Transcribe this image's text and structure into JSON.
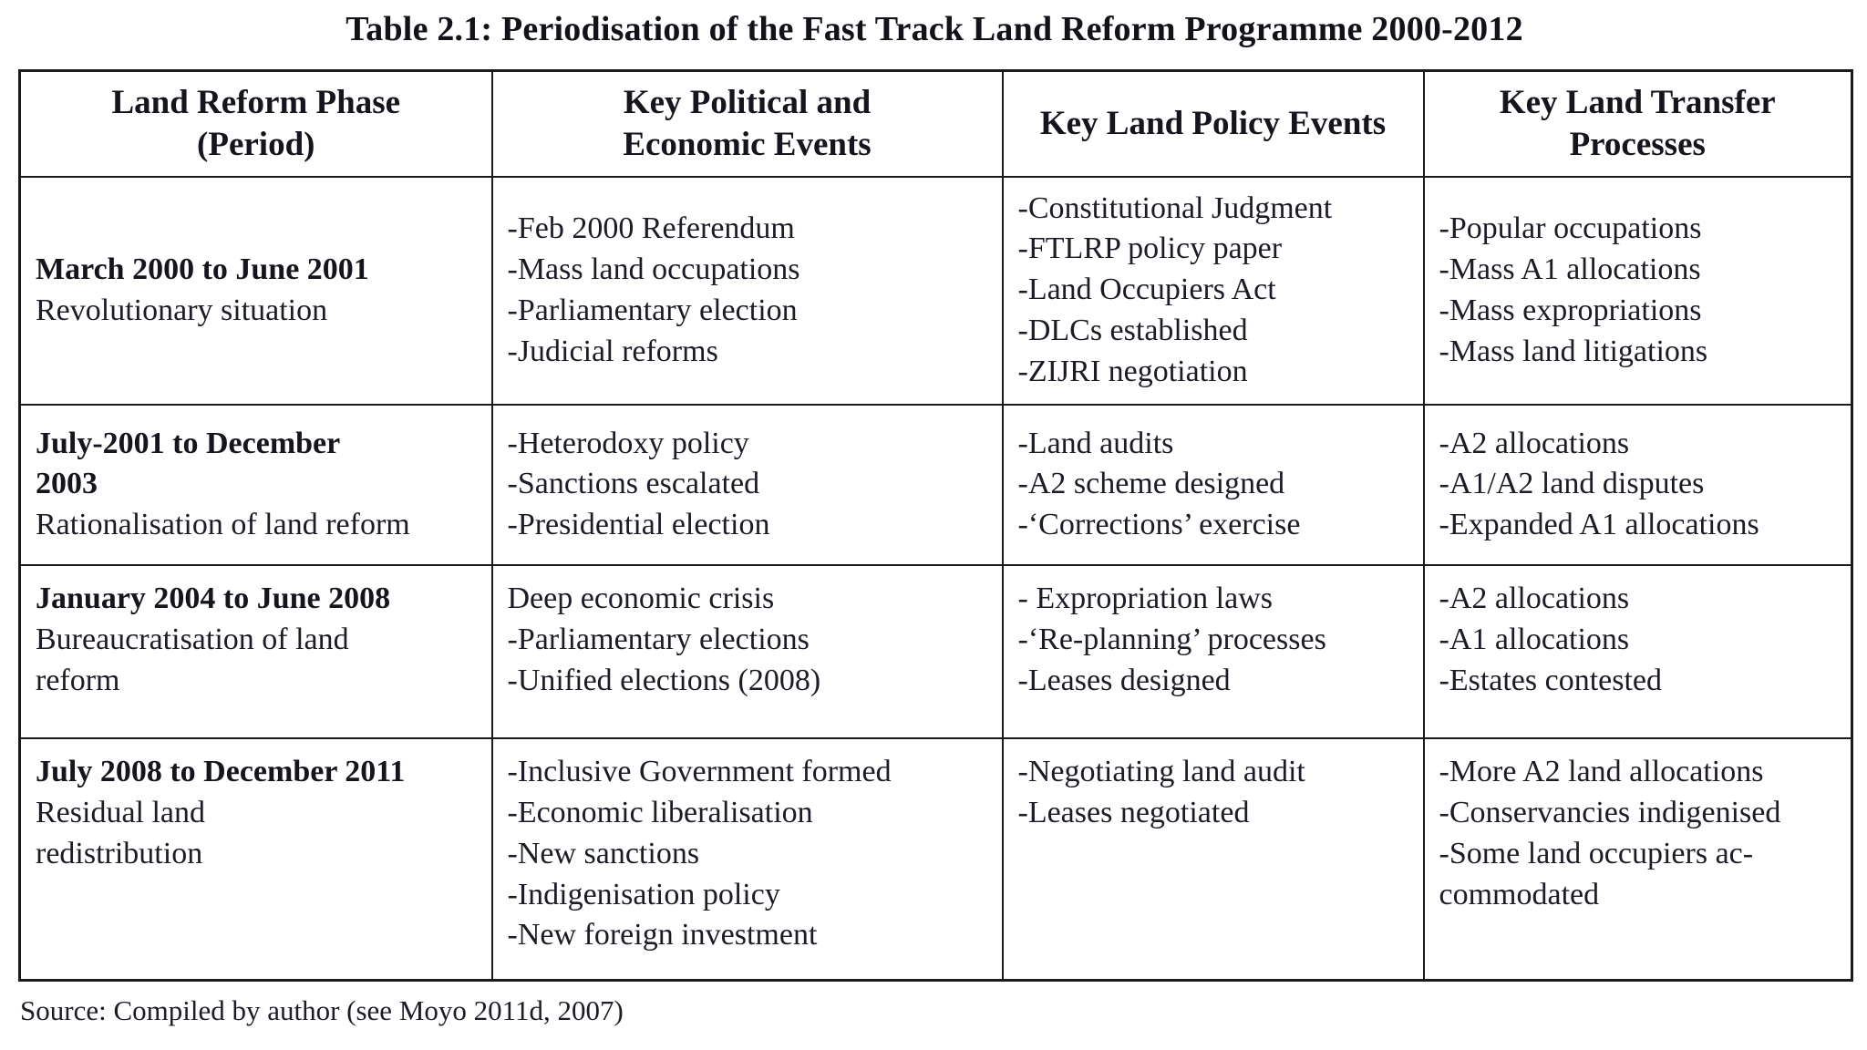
{
  "page": {
    "title": "Table 2.1: Periodisation of the Fast Track Land Reform Programme 2000-2012",
    "source_note": "Source: Compiled by author (see Moyo 2011d, 2007)"
  },
  "table": {
    "headers": [
      {
        "lines": [
          "Land Reform Phase",
          "(Period)"
        ]
      },
      {
        "lines": [
          "Key Political and",
          "Economic Events"
        ]
      },
      {
        "lines": [
          "Key Land Policy Events"
        ]
      },
      {
        "lines": [
          "Key Land Transfer",
          "Processes"
        ]
      }
    ],
    "rows": [
      {
        "phase_lines": [
          "March 2000 to June 2001"
        ],
        "phase_label_lines": [
          "Revolutionary situation"
        ],
        "political_economic_events": [
          "-Feb 2000 Referendum",
          "-Mass land occupations",
          "-Parliamentary election",
          "-Judicial reforms"
        ],
        "land_policy_events": [
          "-Constitutional Judgment",
          "-FTLRP policy paper",
          "-Land Occupiers Act",
          "-DLCs established",
          "-ZIJRI negotiation"
        ],
        "land_transfer_processes": [
          "-Popular occupations",
          "-Mass A1 allocations",
          "-Mass expropriations",
          "-Mass land litigations"
        ]
      },
      {
        "phase_lines": [
          "July-2001 to December",
          "2003"
        ],
        "phase_label_lines": [
          "Rationalisation of land reform"
        ],
        "political_economic_events": [
          "-Heterodoxy policy",
          "-Sanctions escalated",
          "-Presidential election"
        ],
        "land_policy_events": [
          "-Land audits",
          "-A2 scheme designed",
          "-‘Corrections’ exercise"
        ],
        "land_transfer_processes": [
          "-A2 allocations",
          "-A1/A2 land disputes",
          "-Expanded A1 allocations"
        ]
      },
      {
        "phase_lines": [
          "January 2004 to June 2008"
        ],
        "phase_label_lines": [
          "Bureaucratisation of land",
          "reform"
        ],
        "political_economic_events": [
          "Deep economic crisis",
          "-Parliamentary elections",
          "-Unified elections (2008)"
        ],
        "land_policy_events": [
          "- Expropriation laws",
          "-‘Re-planning’ processes",
          "-Leases designed"
        ],
        "land_transfer_processes": [
          "-A2 allocations",
          "-A1 allocations",
          "-Estates contested"
        ]
      },
      {
        "phase_lines": [
          "July 2008 to December 2011"
        ],
        "phase_label_lines": [
          "Residual land",
          "redistribution"
        ],
        "political_economic_events": [
          "-Inclusive Government formed",
          "-Economic liberalisation",
          "-New sanctions",
          "-Indigenisation policy",
          "-New foreign investment"
        ],
        "land_policy_events": [
          "-Negotiating land audit",
          "-Leases negotiated"
        ],
        "land_transfer_processes": [
          "-More A2 land allocations",
          "-Conservancies indigenised",
          "-Some land occupiers ac-",
          "commodated"
        ]
      }
    ]
  }
}
